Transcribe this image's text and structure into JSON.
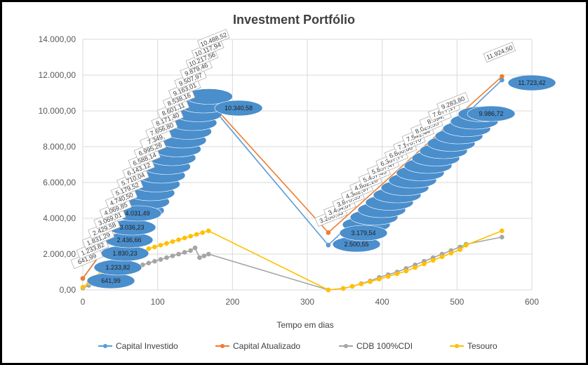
{
  "chart_data": {
    "type": "line",
    "title": "Investment Portfólio",
    "xlabel": "Tempo em dias",
    "ylabel": "",
    "xlim": [
      0,
      600
    ],
    "ylim": [
      0,
      14000
    ],
    "x_ticks": [
      "0",
      "100",
      "200",
      "300",
      "400",
      "500",
      "600"
    ],
    "y_ticks": [
      "0,00",
      "2.000,00",
      "4.000,00",
      "6.000,00",
      "8.000,00",
      "10.000,00",
      "12.000,00",
      "14.000,00"
    ],
    "gridlines": true,
    "series": [
      {
        "name": "Capital Investido",
        "color": "#5B9BD5",
        "x": [
          0,
          170,
          328,
          560
        ],
        "y": [
          641.99,
          10340.58,
          2500.55,
          11723.42
        ]
      },
      {
        "name": "Capital Atualizado",
        "color": "#ED7D31",
        "x": [
          0,
          170,
          328,
          560
        ],
        "y": [
          641.99,
          10488.52,
          3200.53,
          11924.5
        ]
      },
      {
        "name": "CDB 100%CDI",
        "color": "#A5A5A5",
        "x": [
          0,
          8,
          16,
          24,
          32,
          40,
          48,
          56,
          64,
          72,
          80,
          88,
          96,
          104,
          112,
          120,
          128,
          136,
          144,
          150,
          156,
          162,
          168,
          328,
          348,
          360,
          372,
          384,
          396,
          408,
          420,
          432,
          444,
          456,
          468,
          480,
          492,
          504,
          512,
          560
        ],
        "y": [
          100,
          250,
          400,
          550,
          700,
          850,
          1000,
          1100,
          1200,
          1300,
          1400,
          1500,
          1600,
          1700,
          1800,
          1900,
          2000,
          2100,
          2200,
          2350,
          1800,
          1900,
          2000,
          0,
          80,
          200,
          350,
          500,
          700,
          850,
          1000,
          1200,
          1400,
          1600,
          1800,
          2000,
          2200,
          2400,
          2550,
          2950
        ]
      },
      {
        "name": "Tesouro",
        "color": "#FFC000",
        "x": [
          0,
          8,
          16,
          24,
          32,
          40,
          48,
          56,
          64,
          72,
          80,
          88,
          96,
          104,
          112,
          120,
          128,
          136,
          144,
          152,
          160,
          168,
          328,
          348,
          360,
          372,
          384,
          396,
          408,
          420,
          432,
          444,
          456,
          468,
          480,
          492,
          504,
          512,
          560
        ],
        "y": [
          150,
          400,
          700,
          1000,
          1300,
          1600,
          1800,
          2000,
          2100,
          2150,
          2200,
          2300,
          2400,
          2500,
          2600,
          2700,
          2800,
          2900,
          3000,
          3100,
          3200,
          3300,
          0,
          80,
          200,
          330,
          460,
          600,
          750,
          900,
          1050,
          1250,
          1450,
          1650,
          1850,
          2050,
          2250,
          2500,
          3300
        ]
      }
    ],
    "annotations": {
      "capital_investido": [
        "641,99",
        "1.233,82",
        "1.830,23",
        "2.436,66",
        "3.036,23",
        "4.031,49",
        "10.340,58",
        "2.500,55",
        "3.179,54",
        "9.986,72",
        "11.723,42"
      ],
      "capital_atualizado_left": [
        "641,99",
        "1.233,82",
        "1.831,29",
        "2.429,58",
        "3.069,01",
        "4.069,85",
        "4.740,50",
        "5.179,52",
        "5.710,04",
        "6.143,12",
        "6.588,14",
        "6.995,26",
        "7.349,",
        "7.656,80",
        "8.171,40",
        "8.601,11",
        "8.538,16",
        "9.163,01",
        "9.507,97",
        "9.879,46",
        "10.217,56",
        "10.117,94",
        "10.488,52"
      ],
      "capital_atualizado_right": [
        "3.200,53",
        "3.454,07",
        "3.870,55",
        "4.382,97",
        "4.882,28",
        "5.457,45",
        "5.857,47",
        "6.367,77",
        "6.800,66",
        "7.170,70",
        "7.541,44",
        "8.025,55",
        "8.594,",
        "7.677,17",
        "9.283,80",
        "11.924,50"
      ]
    }
  }
}
